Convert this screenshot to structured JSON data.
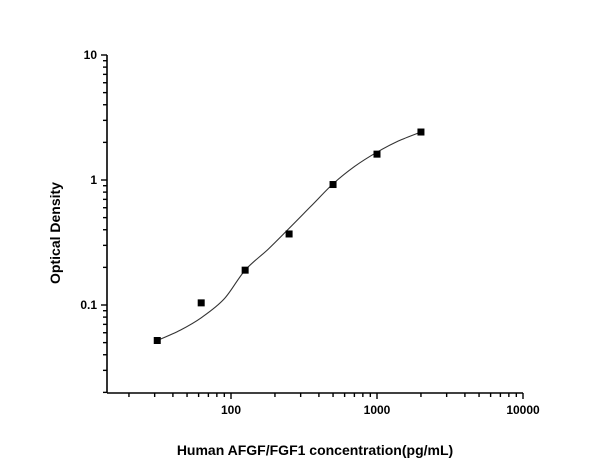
{
  "chart_data": {
    "type": "scatter",
    "title": "",
    "xlabel": "Human AFGF/FGF1 concentration(pg/mL)",
    "ylabel": "Optical Density",
    "xscale": "log",
    "yscale": "log",
    "xlim": [
      14,
      10000
    ],
    "ylim": [
      0.02,
      10
    ],
    "grid": false,
    "legend": null,
    "x_ticks": [
      {
        "value": 100,
        "label": "100"
      },
      {
        "value": 1000,
        "label": "1000"
      },
      {
        "value": 10000,
        "label": "10000"
      }
    ],
    "y_ticks": [
      {
        "value": 0.1,
        "label": "0.1"
      },
      {
        "value": 1,
        "label": "1"
      },
      {
        "value": 10,
        "label": "10"
      }
    ],
    "series": [
      {
        "name": "Standard points",
        "marker": "square",
        "color": "#000000",
        "x": [
          31.25,
          62.5,
          125,
          250,
          500,
          1000,
          2000
        ],
        "y": [
          0.052,
          0.104,
          0.19,
          0.37,
          0.92,
          1.61,
          2.42
        ]
      },
      {
        "name": "Fitted curve",
        "line": true,
        "color": "#333333",
        "x": [
          31.25,
          45,
          62.5,
          90,
          125,
          180,
          250,
          350,
          500,
          700,
          1000,
          1400,
          2000
        ],
        "y": [
          0.052,
          0.063,
          0.079,
          0.112,
          0.19,
          0.28,
          0.41,
          0.61,
          0.93,
          1.28,
          1.67,
          2.05,
          2.42
        ]
      }
    ]
  }
}
